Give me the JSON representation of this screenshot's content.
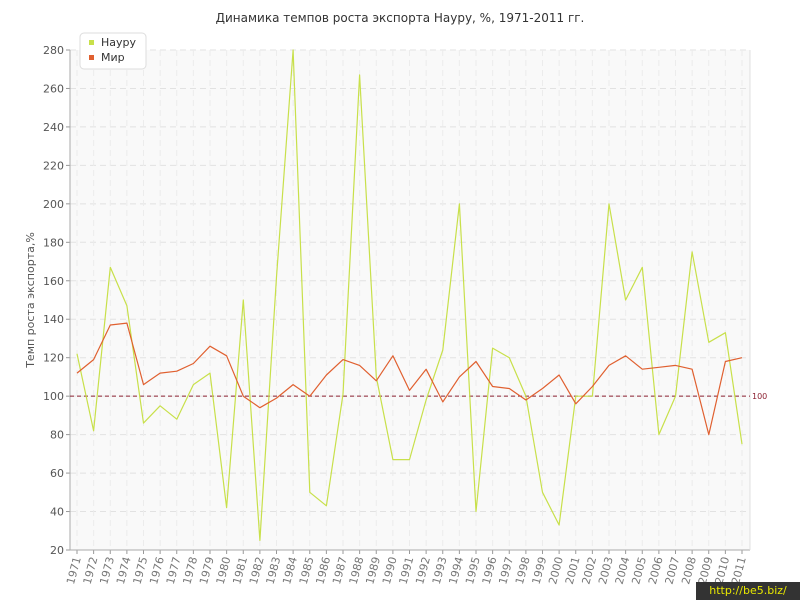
{
  "chart_data": {
    "type": "line",
    "title": "Динамика темпов роста экспорта Науру, %, 1971-2011 гг.",
    "ylabel": "Темп роста экспорта,%",
    "xlabel": "",
    "ylim": [
      20,
      280
    ],
    "yticks": [
      20,
      40,
      60,
      80,
      100,
      120,
      140,
      160,
      180,
      200,
      220,
      240,
      260,
      280
    ],
    "categories": [
      "1971",
      "1972",
      "1973",
      "1974",
      "1975",
      "1976",
      "1977",
      "1978",
      "1979",
      "1980",
      "1981",
      "1982",
      "1983",
      "1984",
      "1985",
      "1986",
      "1987",
      "1988",
      "1989",
      "1990",
      "1991",
      "1992",
      "1993",
      "1994",
      "1995",
      "1996",
      "1997",
      "1998",
      "1999",
      "2000",
      "2001",
      "2002",
      "2003",
      "2004",
      "2005",
      "2006",
      "2007",
      "2008",
      "2009",
      "2010",
      "2011"
    ],
    "series": [
      {
        "name": "Науру",
        "color": "#c8e04a",
        "values": [
          122,
          82,
          167,
          147,
          86,
          95,
          88,
          106,
          112,
          42,
          150,
          25,
          162,
          280,
          50,
          43,
          101,
          267,
          110,
          67,
          67,
          98,
          124,
          200,
          40,
          125,
          120,
          100,
          50,
          33,
          100,
          100,
          200,
          150,
          167,
          80,
          100,
          175,
          128,
          133,
          75
        ]
      },
      {
        "name": "Мир",
        "color": "#e06030",
        "values": [
          112,
          119,
          137,
          138,
          106,
          112,
          113,
          117,
          126,
          121,
          100,
          94,
          99,
          106,
          100,
          111,
          119,
          116,
          108,
          121,
          103,
          114,
          97,
          110,
          118,
          105,
          104,
          98,
          104,
          111,
          96,
          105,
          116,
          121,
          114,
          115,
          116,
          114,
          80,
          118,
          120
        ]
      }
    ],
    "reference_line": {
      "value": 100,
      "label": "100",
      "color": "#8b2030"
    },
    "legend": "top-left",
    "grid": true
  },
  "watermark": "http://be5.biz/"
}
